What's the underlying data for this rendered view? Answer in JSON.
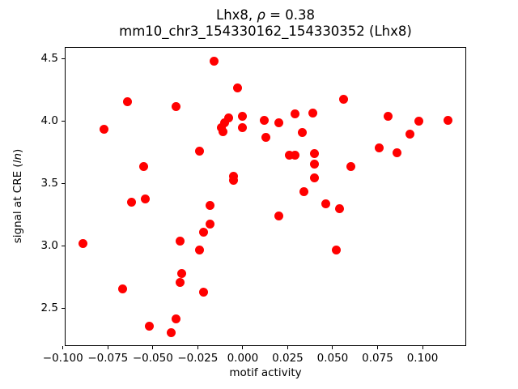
{
  "figure": {
    "title": {
      "prefix": "Lhx8, ",
      "rho": "ρ",
      "suffix": " = 0.38",
      "line2": "mm10_chr3_154330162_154330352 (Lhx8)"
    },
    "ylabel": {
      "pre": "signal at CRE (",
      "italic": "ln",
      "post": ")"
    },
    "xlabel": "motif activity"
  },
  "chart_data": {
    "type": "scatter",
    "title": "Lhx8, ρ = 0.38",
    "subtitle": "mm10_chr3_154330162_154330352 (Lhx8)",
    "xlabel": "motif activity",
    "ylabel": "signal at CRE (ln)",
    "marker_color": "#ff0000",
    "marker_diameter_px": 11,
    "grid": false,
    "legend": false,
    "xlim": [
      -0.099,
      0.1243
    ],
    "ylim": [
      2.201,
      4.596
    ],
    "xticks": [
      -0.1,
      -0.075,
      -0.05,
      -0.025,
      0.0,
      0.025,
      0.05,
      0.075,
      0.1
    ],
    "xtick_labels": [
      "−0.100",
      "−0.075",
      "−0.050",
      "−0.025",
      "0.000",
      "0.025",
      "0.050",
      "0.075",
      "0.100"
    ],
    "yticks": [
      2.5,
      3.0,
      3.5,
      4.0,
      4.5
    ],
    "ytick_labels": [
      "2.5",
      "3.0",
      "3.5",
      "4.0",
      "4.5"
    ],
    "points": [
      [
        -0.089,
        3.02
      ],
      [
        -0.077,
        3.94
      ],
      [
        -0.067,
        2.66
      ],
      [
        -0.064,
        4.16
      ],
      [
        -0.062,
        3.35
      ],
      [
        -0.055,
        3.64
      ],
      [
        -0.054,
        3.38
      ],
      [
        -0.052,
        2.36
      ],
      [
        -0.04,
        2.31
      ],
      [
        -0.037,
        4.12
      ],
      [
        -0.037,
        2.42
      ],
      [
        -0.035,
        3.04
      ],
      [
        -0.035,
        2.71
      ],
      [
        -0.034,
        2.78
      ],
      [
        -0.024,
        3.76
      ],
      [
        -0.024,
        2.97
      ],
      [
        -0.022,
        3.11
      ],
      [
        -0.022,
        2.63
      ],
      [
        -0.018,
        3.33
      ],
      [
        -0.018,
        3.18
      ],
      [
        -0.016,
        4.48
      ],
      [
        -0.012,
        3.95
      ],
      [
        -0.011,
        3.92
      ],
      [
        -0.01,
        3.99
      ],
      [
        -0.008,
        4.03
      ],
      [
        -0.005,
        3.56
      ],
      [
        -0.005,
        3.53
      ],
      [
        -0.003,
        4.27
      ],
      [
        0.0,
        4.04
      ],
      [
        0.0,
        3.95
      ],
      [
        0.012,
        4.01
      ],
      [
        0.013,
        3.87
      ],
      [
        0.02,
        3.99
      ],
      [
        0.02,
        3.24
      ],
      [
        0.026,
        3.73
      ],
      [
        0.029,
        4.06
      ],
      [
        0.029,
        3.73
      ],
      [
        0.033,
        3.91
      ],
      [
        0.034,
        3.44
      ],
      [
        0.039,
        4.07
      ],
      [
        0.04,
        3.74
      ],
      [
        0.04,
        3.66
      ],
      [
        0.04,
        3.55
      ],
      [
        0.046,
        3.34
      ],
      [
        0.052,
        2.97
      ],
      [
        0.054,
        3.3
      ],
      [
        0.056,
        4.18
      ],
      [
        0.06,
        3.64
      ],
      [
        0.076,
        3.79
      ],
      [
        0.081,
        4.04
      ],
      [
        0.086,
        3.75
      ],
      [
        0.093,
        3.9
      ],
      [
        0.098,
        4.0
      ],
      [
        0.114,
        4.01
      ]
    ]
  }
}
